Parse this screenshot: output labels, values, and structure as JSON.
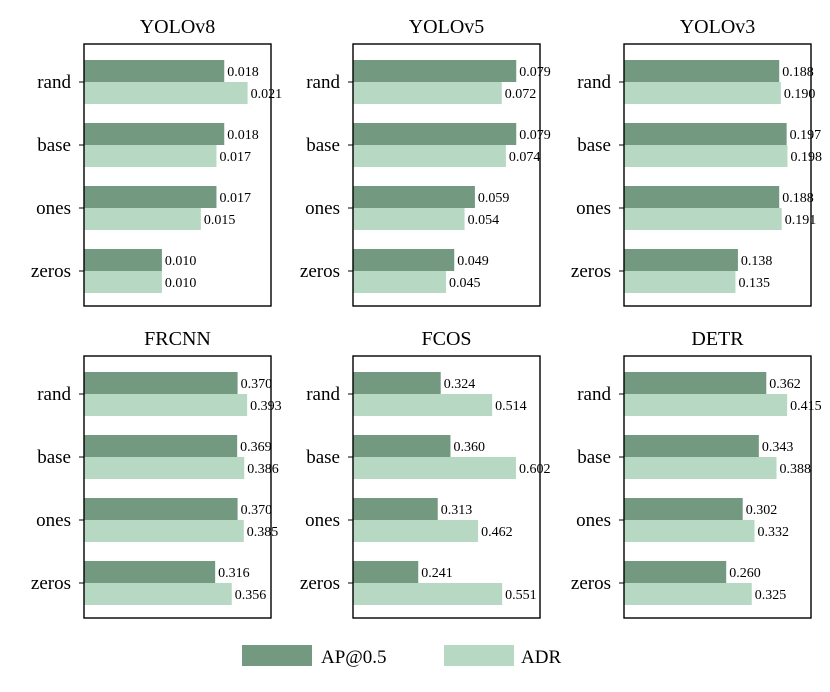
{
  "chart_data": {
    "type": "bar",
    "orientation": "horizontal",
    "categories": [
      "rand",
      "base",
      "ones",
      "zeros"
    ],
    "legend": {
      "placement": "bottom-center",
      "entries": [
        "AP@0.5",
        "ADR"
      ]
    },
    "colors": {
      "AP@0.5": "#739a80",
      "ADR": "#b7d9c3"
    },
    "grid": false,
    "panels": [
      {
        "title": "YOLOv8",
        "xlim": [
          0,
          0.024
        ],
        "series": [
          {
            "name": "AP@0.5",
            "values": [
              0.018,
              0.018,
              0.017,
              0.01
            ]
          },
          {
            "name": "ADR",
            "values": [
              0.021,
              0.017,
              0.015,
              0.01
            ]
          }
        ]
      },
      {
        "title": "YOLOv5",
        "xlim": [
          0,
          0.0905
        ],
        "series": [
          {
            "name": "AP@0.5",
            "values": [
              0.079,
              0.079,
              0.059,
              0.049
            ]
          },
          {
            "name": "ADR",
            "values": [
              0.072,
              0.074,
              0.054,
              0.045
            ]
          }
        ]
      },
      {
        "title": "YOLOv3",
        "xlim": [
          0,
          0.2265
        ],
        "series": [
          {
            "name": "AP@0.5",
            "values": [
              0.188,
              0.197,
              0.188,
              0.138
            ]
          },
          {
            "name": "ADR",
            "values": [
              0.19,
              0.198,
              0.191,
              0.135
            ]
          }
        ]
      },
      {
        "title": "FRCNN",
        "xlim": [
          0,
          0.4505
        ],
        "series": [
          {
            "name": "AP@0.5",
            "values": [
              0.37,
              0.369,
              0.37,
              0.316
            ]
          },
          {
            "name": "ADR",
            "values": [
              0.393,
              0.386,
              0.385,
              0.356
            ]
          }
        ]
      },
      {
        "title": "FCOS",
        "xlim": [
          0,
          0.6907
        ],
        "series": [
          {
            "name": "AP@0.5",
            "values": [
              0.324,
              0.36,
              0.313,
              0.241
            ]
          },
          {
            "name": "ADR",
            "values": [
              0.514,
              0.602,
              0.462,
              0.551
            ]
          }
        ]
      },
      {
        "title": "DETR",
        "xlim": [
          0,
          0.4757
        ],
        "series": [
          {
            "name": "AP@0.5",
            "values": [
              0.362,
              0.343,
              0.302,
              0.26
            ]
          },
          {
            "name": "ADR",
            "values": [
              0.415,
              0.388,
              0.332,
              0.325
            ]
          }
        ]
      }
    ]
  }
}
